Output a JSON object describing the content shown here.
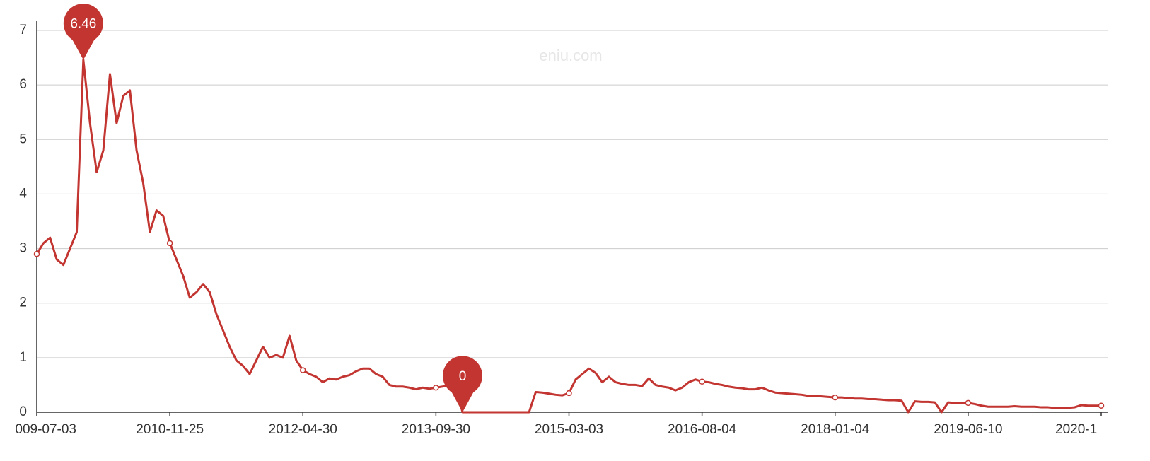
{
  "chart_data": {
    "type": "line",
    "watermark": "eniu.com",
    "categories": [
      "009-07-03",
      null,
      null,
      null,
      null,
      null,
      null,
      null,
      null,
      null,
      null,
      null,
      null,
      null,
      null,
      null,
      null,
      null,
      null,
      null,
      "2010-11-25",
      null,
      null,
      null,
      null,
      null,
      null,
      null,
      null,
      null,
      null,
      null,
      null,
      null,
      null,
      null,
      null,
      null,
      null,
      null,
      "2012-04-30",
      null,
      null,
      null,
      null,
      null,
      null,
      null,
      null,
      null,
      null,
      null,
      null,
      null,
      null,
      null,
      null,
      null,
      null,
      null,
      "2013-09-30",
      null,
      null,
      null,
      null,
      null,
      null,
      null,
      null,
      null,
      null,
      null,
      null,
      null,
      null,
      null,
      null,
      null,
      null,
      null,
      "2015-03-03",
      null,
      null,
      null,
      null,
      null,
      null,
      null,
      null,
      null,
      null,
      null,
      null,
      null,
      null,
      null,
      null,
      null,
      null,
      null,
      "2016-08-04",
      null,
      null,
      null,
      null,
      null,
      null,
      null,
      null,
      null,
      null,
      null,
      null,
      null,
      null,
      null,
      null,
      null,
      null,
      null,
      "2018-01-04",
      null,
      null,
      null,
      null,
      null,
      null,
      null,
      null,
      null,
      null,
      null,
      null,
      null,
      null,
      null,
      null,
      null,
      null,
      null,
      "2019-06-10",
      null,
      null,
      null,
      null,
      null,
      null,
      null,
      null,
      null,
      null,
      null,
      null,
      null,
      null,
      null,
      null,
      null,
      null,
      null,
      "2020-1"
    ],
    "values": [
      2.9,
      3.1,
      3.2,
      2.8,
      2.7,
      3.0,
      3.3,
      6.46,
      5.3,
      4.4,
      4.8,
      6.2,
      5.3,
      5.8,
      5.9,
      4.8,
      4.2,
      3.3,
      3.7,
      3.6,
      3.1,
      2.8,
      2.5,
      2.1,
      2.2,
      2.35,
      2.2,
      1.8,
      1.5,
      1.2,
      0.95,
      0.85,
      0.7,
      0.95,
      1.2,
      1.0,
      1.05,
      1.0,
      1.4,
      0.95,
      0.77,
      0.7,
      0.65,
      0.55,
      0.62,
      0.6,
      0.65,
      0.68,
      0.75,
      0.8,
      0.8,
      0.7,
      0.65,
      0.5,
      0.47,
      0.47,
      0.45,
      0.42,
      0.45,
      0.43,
      0.45,
      0.47,
      0.5,
      0.48,
      0,
      0,
      0,
      0,
      0,
      0,
      0,
      0,
      0,
      0,
      0,
      0.37,
      0.36,
      0.34,
      0.32,
      0.31,
      0.35,
      0.6,
      0.7,
      0.8,
      0.72,
      0.55,
      0.65,
      0.55,
      0.52,
      0.5,
      0.5,
      0.48,
      0.62,
      0.5,
      0.47,
      0.45,
      0.4,
      0.45,
      0.55,
      0.6,
      0.56,
      0.55,
      0.52,
      0.5,
      0.47,
      0.45,
      0.44,
      0.42,
      0.42,
      0.45,
      0.4,
      0.36,
      0.35,
      0.34,
      0.33,
      0.32,
      0.3,
      0.3,
      0.29,
      0.28,
      0.27,
      0.27,
      0.26,
      0.25,
      0.25,
      0.24,
      0.24,
      0.23,
      0.22,
      0.22,
      0.21,
      0,
      0.2,
      0.19,
      0.19,
      0.18,
      0,
      0.18,
      0.17,
      0.17,
      0.17,
      0.15,
      0.12,
      0.1,
      0.1,
      0.1,
      0.1,
      0.11,
      0.1,
      0.1,
      0.1,
      0.09,
      0.09,
      0.08,
      0.08,
      0.08,
      0.09,
      0.13,
      0.12,
      0.12,
      0.12
    ],
    "color": "#c23531",
    "mark_points": [
      {
        "value": 6.46
      },
      {
        "value": 0
      }
    ],
    "ylim": [
      0,
      7
    ],
    "yticks": [
      0,
      1,
      2,
      3,
      4,
      5,
      6,
      7
    ],
    "grid": true
  }
}
